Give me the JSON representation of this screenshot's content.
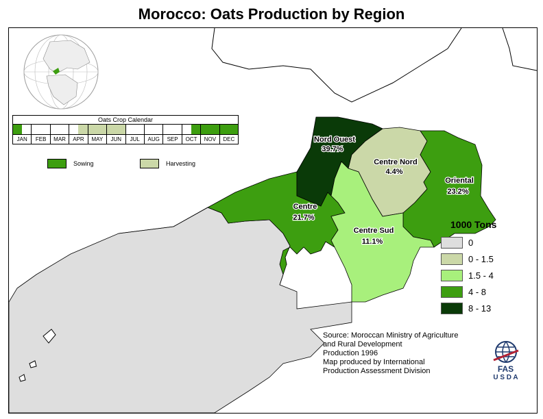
{
  "title": "Morocco: Oats Production by Region",
  "calendar": {
    "title": "Oats Crop Calendar",
    "months": [
      "JAN",
      "FEB",
      "MAR",
      "APR",
      "MAY",
      "JUN",
      "JUL",
      "AUG",
      "SEP",
      "OCT",
      "NOV",
      "DEC"
    ],
    "halves": [
      [
        "sow",
        "none"
      ],
      [
        "none",
        "none"
      ],
      [
        "none",
        "none"
      ],
      [
        "none",
        "harvest"
      ],
      [
        "harvest",
        "harvest"
      ],
      [
        "harvest",
        "harvest"
      ],
      [
        "none",
        "none"
      ],
      [
        "none",
        "none"
      ],
      [
        "none",
        "none"
      ],
      [
        "none",
        "sow"
      ],
      [
        "sow",
        "sow"
      ],
      [
        "sow",
        "sow"
      ]
    ],
    "key": {
      "sowing": "Sowing",
      "harvesting": "Harvesting"
    }
  },
  "colors": {
    "sow": "#3d9e10",
    "harvest": "#cbd8a8",
    "class_0": "#dedede",
    "class_1": "#cbd8a8",
    "class_2": "#a8f07c",
    "class_3": "#3d9e10",
    "class_4": "#0a3a08"
  },
  "regions": [
    {
      "name": "Nord Ouest",
      "share": "39.7%",
      "class": "class_4"
    },
    {
      "name": "Centre Nord",
      "share": "4.4%",
      "class": "class_1"
    },
    {
      "name": "Oriental",
      "share": "23.2%",
      "class": "class_3"
    },
    {
      "name": "Centre",
      "share": "21.7%",
      "class": "class_3"
    },
    {
      "name": "Centre Sud",
      "share": "11.1%",
      "class": "class_2"
    }
  ],
  "legend": {
    "title": "1000 Tons",
    "items": [
      {
        "label": "0",
        "class": "class_0"
      },
      {
        "label": "0 - 1.5",
        "class": "class_1"
      },
      {
        "label": "1.5 - 4",
        "class": "class_2"
      },
      {
        "label": "4 - 8",
        "class": "class_3"
      },
      {
        "label": "8 - 13",
        "class": "class_4"
      }
    ]
  },
  "source": [
    "Source: Moroccan Ministry of Agriculture",
    "and Rural Development",
    "Production 1996",
    "Map produced by International",
    "Production Assessment Division"
  ],
  "logo": {
    "agency": "FAS",
    "dept": "U S D A"
  }
}
